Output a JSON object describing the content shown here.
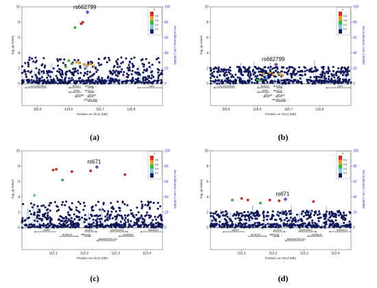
{
  "colors": {
    "point": "#101a6b",
    "recomb": "#5a8ad6",
    "axis_right": "#3333cc",
    "r2_scale": [
      "#e8211b",
      "#f29a1c",
      "#2ec13a",
      "#7fc6e8",
      "#101a6b"
    ]
  },
  "legend": {
    "title": "r²",
    "labels": [
      "0.8",
      "0.6",
      "0.4",
      "0.2"
    ]
  },
  "chart_data": [
    {
      "id": "a",
      "type": "scatter",
      "panel_label": "(a)",
      "lead_snp": "rs662799",
      "lead": {
        "x": 116.66,
        "y": 9.3
      },
      "xlabel": "Position on chr11 (Mb)",
      "ylabel": "-log₁₀(p-value)",
      "y2label": "Recombination rate (cM/Mb)",
      "xlim": [
        116.45,
        116.9
      ],
      "ylim": [
        0,
        10
      ],
      "y2lim": [
        0,
        100
      ],
      "xticks": [
        116.5,
        116.6,
        116.7,
        116.8
      ],
      "yticks": [
        0,
        2,
        4,
        6,
        8,
        10
      ],
      "y2ticks": [
        0,
        20,
        40,
        60,
        80,
        100
      ],
      "highlights": [
        {
          "x": 116.645,
          "y": 8.0,
          "r2": 0.9
        },
        {
          "x": 116.64,
          "y": 7.8,
          "r2": 0.9
        },
        {
          "x": 116.62,
          "y": 7.3,
          "r2": 0.5
        },
        {
          "x": 116.6,
          "y": 3.0,
          "r2": 0.5
        },
        {
          "x": 116.61,
          "y": 2.6,
          "r2": 0.5
        },
        {
          "x": 116.625,
          "y": 2.8,
          "r2": 0.7
        },
        {
          "x": 116.635,
          "y": 2.7,
          "r2": 0.7
        },
        {
          "x": 116.65,
          "y": 2.5,
          "r2": 0.7
        },
        {
          "x": 116.66,
          "y": 2.4,
          "r2": 0.7
        },
        {
          "x": 116.67,
          "y": 2.6,
          "r2": 0.7
        },
        {
          "x": 116.68,
          "y": 2.3,
          "r2": 0.7
        },
        {
          "x": 116.59,
          "y": 2.2,
          "r2": 0.5
        },
        {
          "x": 116.655,
          "y": 2.1,
          "r2": 0.3
        }
      ],
      "genes": [
        {
          "name": "LOC101929011",
          "start": 116.46,
          "end": 116.53,
          "row": 0,
          "dir": "L"
        },
        {
          "name": "BUD13",
          "start": 116.6,
          "end": 116.64,
          "row": 0,
          "dir": "L"
        },
        {
          "name": "APOA4",
          "start": 116.66,
          "end": 116.68,
          "row": 0,
          "dir": "R"
        },
        {
          "name": "SIK3",
          "start": 116.82,
          "end": 116.9,
          "row": 0,
          "dir": "L"
        },
        {
          "name": "ZPR1",
          "start": 116.6,
          "end": 116.64,
          "row": 1,
          "dir": "L"
        },
        {
          "name": "APOC3",
          "start": 116.66,
          "end": 116.68,
          "row": 1,
          "dir": "R"
        },
        {
          "name": "APOA5",
          "start": 116.62,
          "end": 116.64,
          "row": 2,
          "dir": "L"
        },
        {
          "name": "APOA1",
          "start": 116.66,
          "end": 116.68,
          "row": 2,
          "dir": "L"
        },
        {
          "name": "APOA1-AS1",
          "start": 116.66,
          "end": 116.69,
          "row": 3,
          "dir": "R"
        }
      ]
    },
    {
      "id": "b",
      "type": "scatter",
      "panel_label": "(b)",
      "lead_snp": "rs662799",
      "lead": {
        "x": 116.66,
        "y": 2.5
      },
      "xlabel": "Position on chr11 (Mb)",
      "ylabel": "-log₁₀(p-value)",
      "y2label": "Recombination rate (cM/Mb)",
      "xlim": [
        116.45,
        116.9
      ],
      "ylim": [
        0,
        10
      ],
      "y2lim": [
        0,
        100
      ],
      "xticks": [
        116.5,
        116.6,
        116.7,
        116.8
      ],
      "yticks": [
        0,
        2,
        4,
        6,
        8,
        10
      ],
      "y2ticks": [
        0,
        20,
        40,
        60,
        80,
        100
      ],
      "highlights": [
        {
          "x": 116.62,
          "y": 1.3,
          "r2": 0.7
        },
        {
          "x": 116.64,
          "y": 1.4,
          "r2": 0.7
        },
        {
          "x": 116.65,
          "y": 1.2,
          "r2": 0.7
        },
        {
          "x": 116.67,
          "y": 1.3,
          "r2": 0.7
        },
        {
          "x": 116.6,
          "y": 0.5,
          "r2": 0.5
        },
        {
          "x": 116.61,
          "y": 0.4,
          "r2": 0.5
        },
        {
          "x": 116.68,
          "y": 1.1,
          "r2": 0.7
        },
        {
          "x": 116.63,
          "y": 0.9,
          "r2": 0.3
        }
      ],
      "genes": [
        {
          "name": "LOC101929011",
          "start": 116.46,
          "end": 116.53,
          "row": 0,
          "dir": "L"
        },
        {
          "name": "BUD13",
          "start": 116.6,
          "end": 116.64,
          "row": 0,
          "dir": "L"
        },
        {
          "name": "APOA4",
          "start": 116.66,
          "end": 116.68,
          "row": 0,
          "dir": "R"
        },
        {
          "name": "SIK3",
          "start": 116.82,
          "end": 116.9,
          "row": 0,
          "dir": "L"
        },
        {
          "name": "ZPR1",
          "start": 116.6,
          "end": 116.64,
          "row": 1,
          "dir": "L"
        },
        {
          "name": "APOC3",
          "start": 116.66,
          "end": 116.68,
          "row": 1,
          "dir": "R"
        },
        {
          "name": "APOA5",
          "start": 116.62,
          "end": 116.64,
          "row": 2,
          "dir": "L"
        },
        {
          "name": "APOA1",
          "start": 116.66,
          "end": 116.68,
          "row": 2,
          "dir": "L"
        },
        {
          "name": "APOA1-AS1",
          "start": 116.66,
          "end": 116.69,
          "row": 3,
          "dir": "R"
        }
      ]
    },
    {
      "id": "c",
      "type": "scatter",
      "panel_label": "(c)",
      "lead_snp": "rs671",
      "lead": {
        "x": 112.24,
        "y": 7.9
      },
      "xlabel": "Position on chr12 (Mb)",
      "ylabel": "-log₁₀(p-value)",
      "y2label": "Recombination rate (cM/Mb)",
      "xlim": [
        112.0,
        112.45
      ],
      "ylim": [
        0,
        10
      ],
      "y2lim": [
        0,
        100
      ],
      "xticks": [
        112.1,
        112.2,
        112.3,
        112.4
      ],
      "yticks": [
        0,
        2,
        4,
        6,
        8,
        10
      ],
      "y2ticks": [
        0,
        20,
        40,
        60,
        80,
        100
      ],
      "highlights": [
        {
          "x": 112.1,
          "y": 7.5,
          "r2": 0.9
        },
        {
          "x": 112.11,
          "y": 7.6,
          "r2": 0.9
        },
        {
          "x": 112.16,
          "y": 7.3,
          "r2": 0.9
        },
        {
          "x": 112.22,
          "y": 7.4,
          "r2": 0.9
        },
        {
          "x": 112.33,
          "y": 6.9,
          "r2": 0.9
        },
        {
          "x": 112.13,
          "y": 6.2,
          "r2": 0.5
        },
        {
          "x": 112.04,
          "y": 4.2,
          "r2": 0.3
        }
      ],
      "genes": [
        {
          "name": "BRAP",
          "start": 112.04,
          "end": 112.11,
          "row": 0,
          "dir": "L"
        },
        {
          "name": "ALDH2",
          "start": 112.2,
          "end": 112.24,
          "row": 0,
          "dir": "R"
        },
        {
          "name": "MAPKAPK5",
          "start": 112.28,
          "end": 112.34,
          "row": 0,
          "dir": "R"
        },
        {
          "name": "TMEM116",
          "start": 112.38,
          "end": 112.45,
          "row": 0,
          "dir": "L"
        },
        {
          "name": "ACAD10",
          "start": 112.12,
          "end": 112.18,
          "row": 1,
          "dir": "R"
        },
        {
          "name": "MIR6761",
          "start": 112.2,
          "end": 112.22,
          "row": 1,
          "dir": "R"
        },
        {
          "name": "ADAM1A",
          "start": 112.31,
          "end": 112.36,
          "row": 1,
          "dir": "L"
        },
        {
          "name": "MAPKAPK5-AS1",
          "start": 112.24,
          "end": 112.3,
          "row": 2,
          "dir": "L"
        }
      ]
    },
    {
      "id": "d",
      "type": "scatter",
      "panel_label": "(d)",
      "lead_snp": "rs671",
      "lead": {
        "x": 112.24,
        "y": 3.7
      },
      "xlabel": "Position on chr12 (Mb)",
      "ylabel": "-log₁₀(p-value)",
      "y2label": "Recombination rate (cM/Mb)",
      "xlim": [
        112.0,
        112.45
      ],
      "ylim": [
        0,
        10
      ],
      "y2lim": [
        0,
        100
      ],
      "xticks": [
        112.1,
        112.2,
        112.3,
        112.4
      ],
      "yticks": [
        0,
        2,
        4,
        6,
        8,
        10
      ],
      "y2ticks": [
        0,
        20,
        40,
        60,
        80,
        100
      ],
      "highlights": [
        {
          "x": 112.07,
          "y": 3.6,
          "r2": 0.5
        },
        {
          "x": 112.1,
          "y": 3.8,
          "r2": 0.9
        },
        {
          "x": 112.12,
          "y": 3.6,
          "r2": 0.9
        },
        {
          "x": 112.16,
          "y": 3.2,
          "r2": 0.5
        },
        {
          "x": 112.19,
          "y": 3.6,
          "r2": 0.9
        },
        {
          "x": 112.22,
          "y": 3.5,
          "r2": 0.9
        },
        {
          "x": 112.33,
          "y": 3.4,
          "r2": 0.9
        },
        {
          "x": 112.32,
          "y": 2.1,
          "r2": 0.3
        }
      ],
      "genes": [
        {
          "name": "BRAP",
          "start": 112.04,
          "end": 112.11,
          "row": 0,
          "dir": "L"
        },
        {
          "name": "ALDH2",
          "start": 112.2,
          "end": 112.24,
          "row": 0,
          "dir": "R"
        },
        {
          "name": "MAPKAPK5",
          "start": 112.28,
          "end": 112.34,
          "row": 0,
          "dir": "R"
        },
        {
          "name": "TMEM116",
          "start": 112.38,
          "end": 112.45,
          "row": 0,
          "dir": "L"
        },
        {
          "name": "ACAD10",
          "start": 112.12,
          "end": 112.18,
          "row": 1,
          "dir": "R"
        },
        {
          "name": "MIR6761",
          "start": 112.2,
          "end": 112.22,
          "row": 1,
          "dir": "R"
        },
        {
          "name": "ADAM1A",
          "start": 112.31,
          "end": 112.36,
          "row": 1,
          "dir": "L"
        },
        {
          "name": "MAPKAPK5-AS1",
          "start": 112.24,
          "end": 112.3,
          "row": 2,
          "dir": "L"
        }
      ]
    }
  ]
}
